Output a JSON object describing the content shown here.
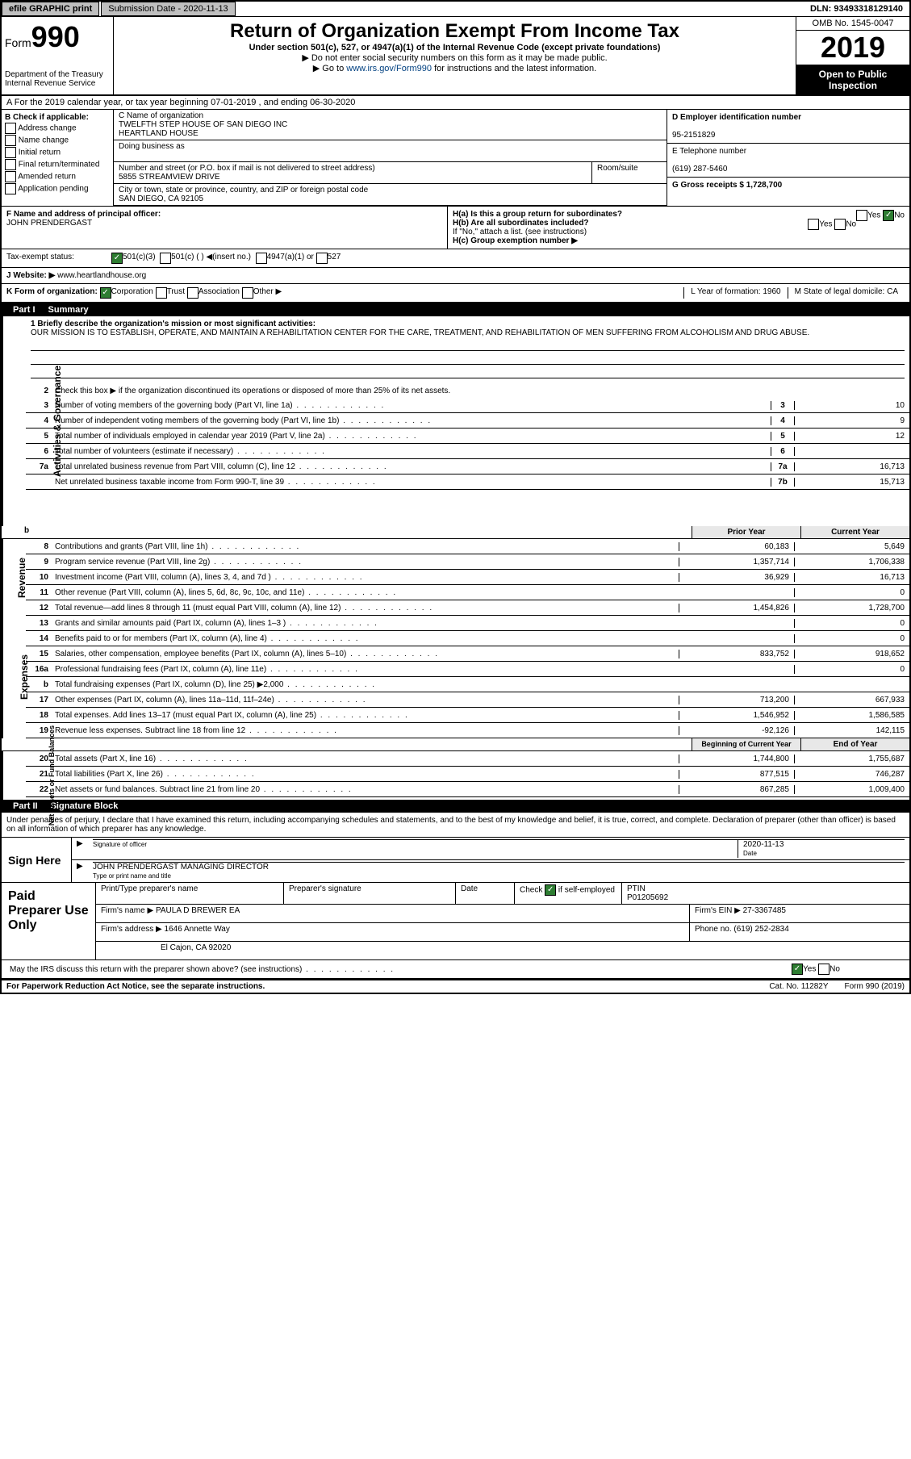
{
  "topbar": {
    "efile": "efile GRAPHIC print",
    "subdate_label": "Submission Date - 2020-11-13",
    "dln": "DLN: 93493318129140"
  },
  "header": {
    "form_label": "Form",
    "form_num": "990",
    "dept": "Department of the Treasury\nInternal Revenue Service",
    "title": "Return of Organization Exempt From Income Tax",
    "sub1": "Under section 501(c), 527, or 4947(a)(1) of the Internal Revenue Code (except private foundations)",
    "sub2": "▶ Do not enter social security numbers on this form as it may be made public.",
    "sub3_pre": "▶ Go to ",
    "sub3_link": "www.irs.gov/Form990",
    "sub3_post": " for instructions and the latest information.",
    "omb": "OMB No. 1545-0047",
    "year": "2019",
    "open": "Open to Public Inspection"
  },
  "lineA": "A For the 2019 calendar year, or tax year beginning 07-01-2019   , and ending 06-30-2020",
  "colB": {
    "hdr": "B Check if applicable:",
    "items": [
      "Address change",
      "Name change",
      "Initial return",
      "Final return/terminated",
      "Amended return",
      "Application pending"
    ]
  },
  "colC": {
    "name_label": "C Name of organization",
    "name1": "TWELFTH STEP HOUSE OF SAN DIEGO INC",
    "name2": "HEARTLAND HOUSE",
    "dba_label": "Doing business as",
    "addr_label": "Number and street (or P.O. box if mail is not delivered to street address)",
    "addr": "5855 STREAMVIEW DRIVE",
    "room_label": "Room/suite",
    "city_label": "City or town, state or province, country, and ZIP or foreign postal code",
    "city": "SAN DIEGO, CA  92105",
    "officer_label": "F  Name and address of principal officer:",
    "officer": "JOHN PRENDERGAST"
  },
  "colD": {
    "ein_label": "D Employer identification number",
    "ein": "95-2151829",
    "tel_label": "E Telephone number",
    "tel": "(619) 287-5460",
    "gross_label": "G Gross receipts $ 1,728,700"
  },
  "H": {
    "a": "H(a)  Is this a group return for subordinates?",
    "b": "H(b)  Are all subordinates included?",
    "b_note": "If \"No,\" attach a list. (see instructions)",
    "c": "H(c)  Group exemption number ▶"
  },
  "I": {
    "label": "Tax-exempt status:",
    "o1": "501(c)(3)",
    "o2": "501(c) (   ) ◀(insert no.)",
    "o3": "4947(a)(1) or",
    "o4": "527"
  },
  "J": {
    "label": "J  Website: ▶",
    "val": "www.heartlandhouse.org"
  },
  "K": {
    "label": "K Form of organization:",
    "o1": "Corporation",
    "o2": "Trust",
    "o3": "Association",
    "o4": "Other ▶",
    "L": "L Year of formation: 1960",
    "M": "M State of legal domicile: CA"
  },
  "part1": {
    "hdr": "Part I",
    "title": "Summary",
    "q1": "1  Briefly describe the organization's mission or most significant activities:",
    "mission": "OUR MISSION IS TO ESTABLISH, OPERATE, AND MAINTAIN A REHABILITATION CENTER FOR THE CARE, TREATMENT, AND REHABILITATION OF MEN SUFFERING FROM ALCOHOLISM AND DRUG ABUSE.",
    "q2": "Check this box ▶       if the organization discontinued its operations or disposed of more than 25% of its net assets.",
    "lines_gov": [
      {
        "n": "3",
        "d": "Number of voting members of the governing body (Part VI, line 1a)",
        "box": "3",
        "v": "10"
      },
      {
        "n": "4",
        "d": "Number of independent voting members of the governing body (Part VI, line 1b)",
        "box": "4",
        "v": "9"
      },
      {
        "n": "5",
        "d": "Total number of individuals employed in calendar year 2019 (Part V, line 2a)",
        "box": "5",
        "v": "12"
      },
      {
        "n": "6",
        "d": "Total number of volunteers (estimate if necessary)",
        "box": "6",
        "v": ""
      },
      {
        "n": "7a",
        "d": "Total unrelated business revenue from Part VIII, column (C), line 12",
        "box": "7a",
        "v": "16,713"
      },
      {
        "n": "",
        "d": "Net unrelated business taxable income from Form 990-T, line 39",
        "box": "7b",
        "v": "15,713"
      }
    ],
    "col_hdr1": "Prior Year",
    "col_hdr2": "Current Year",
    "lines_rev": [
      {
        "n": "8",
        "d": "Contributions and grants (Part VIII, line 1h)",
        "v1": "60,183",
        "v2": "5,649"
      },
      {
        "n": "9",
        "d": "Program service revenue (Part VIII, line 2g)",
        "v1": "1,357,714",
        "v2": "1,706,338"
      },
      {
        "n": "10",
        "d": "Investment income (Part VIII, column (A), lines 3, 4, and 7d )",
        "v1": "36,929",
        "v2": "16,713"
      },
      {
        "n": "11",
        "d": "Other revenue (Part VIII, column (A), lines 5, 6d, 8c, 9c, 10c, and 11e)",
        "v1": "",
        "v2": "0"
      },
      {
        "n": "12",
        "d": "Total revenue—add lines 8 through 11 (must equal Part VIII, column (A), line 12)",
        "v1": "1,454,826",
        "v2": "1,728,700"
      }
    ],
    "lines_exp": [
      {
        "n": "13",
        "d": "Grants and similar amounts paid (Part IX, column (A), lines 1–3 )",
        "v1": "",
        "v2": "0"
      },
      {
        "n": "14",
        "d": "Benefits paid to or for members (Part IX, column (A), line 4)",
        "v1": "",
        "v2": "0"
      },
      {
        "n": "15",
        "d": "Salaries, other compensation, employee benefits (Part IX, column (A), lines 5–10)",
        "v1": "833,752",
        "v2": "918,652"
      },
      {
        "n": "16a",
        "d": "Professional fundraising fees (Part IX, column (A), line 11e)",
        "v1": "",
        "v2": "0"
      },
      {
        "n": "b",
        "d": "Total fundraising expenses (Part IX, column (D), line 25) ▶2,000",
        "v1": "",
        "v2": "",
        "shade": true
      },
      {
        "n": "17",
        "d": "Other expenses (Part IX, column (A), lines 11a–11d, 11f–24e)",
        "v1": "713,200",
        "v2": "667,933"
      },
      {
        "n": "18",
        "d": "Total expenses. Add lines 13–17 (must equal Part IX, column (A), line 25)",
        "v1": "1,546,952",
        "v2": "1,586,585"
      },
      {
        "n": "19",
        "d": "Revenue less expenses. Subtract line 18 from line 12",
        "v1": "-92,126",
        "v2": "142,115"
      }
    ],
    "col_hdr3": "Beginning of Current Year",
    "col_hdr4": "End of Year",
    "lines_net": [
      {
        "n": "20",
        "d": "Total assets (Part X, line 16)",
        "v1": "1,744,800",
        "v2": "1,755,687"
      },
      {
        "n": "21",
        "d": "Total liabilities (Part X, line 26)",
        "v1": "877,515",
        "v2": "746,287"
      },
      {
        "n": "22",
        "d": "Net assets or fund balances. Subtract line 21 from line 20",
        "v1": "867,285",
        "v2": "1,009,400"
      }
    ],
    "side_gov": "Activities & Governance",
    "side_rev": "Revenue",
    "side_exp": "Expenses",
    "side_net": "Net Assets or Fund Balances"
  },
  "part2": {
    "hdr": "Part II",
    "title": "Signature Block",
    "intro": "Under penalties of perjury, I declare that I have examined this return, including accompanying schedules and statements, and to the best of my knowledge and belief, it is true, correct, and complete. Declaration of preparer (other than officer) is based on all information of which preparer has any knowledge.",
    "sign_here": "Sign Here",
    "sig_label": "Signature of officer",
    "date_label": "Date",
    "date_val": "2020-11-13",
    "name_val": "JOHN PRENDERGAST MANAGING DIRECTOR",
    "name_label": "Type or print name and title",
    "paid": "Paid Preparer Use Only",
    "p_name_label": "Print/Type preparer's name",
    "p_sig_label": "Preparer's signature",
    "p_date_label": "Date",
    "p_check_label": "Check",
    "p_self": "if self-employed",
    "ptin_label": "PTIN",
    "ptin": "P01205692",
    "firm_name_label": "Firm's name    ▶",
    "firm_name": "PAULA D BREWER EA",
    "firm_ein_label": "Firm's EIN ▶",
    "firm_ein": "27-3367485",
    "firm_addr_label": "Firm's address ▶",
    "firm_addr1": "1646 Annette Way",
    "firm_addr2": "El Cajon, CA  92020",
    "phone_label": "Phone no.",
    "phone": "(619) 252-2834",
    "discuss": "May the IRS discuss this return with the preparer shown above? (see instructions)"
  },
  "footer": {
    "f1": "For Paperwork Reduction Act Notice, see the separate instructions.",
    "f2": "Cat. No. 11282Y",
    "f3": "Form 990 (2019)"
  }
}
